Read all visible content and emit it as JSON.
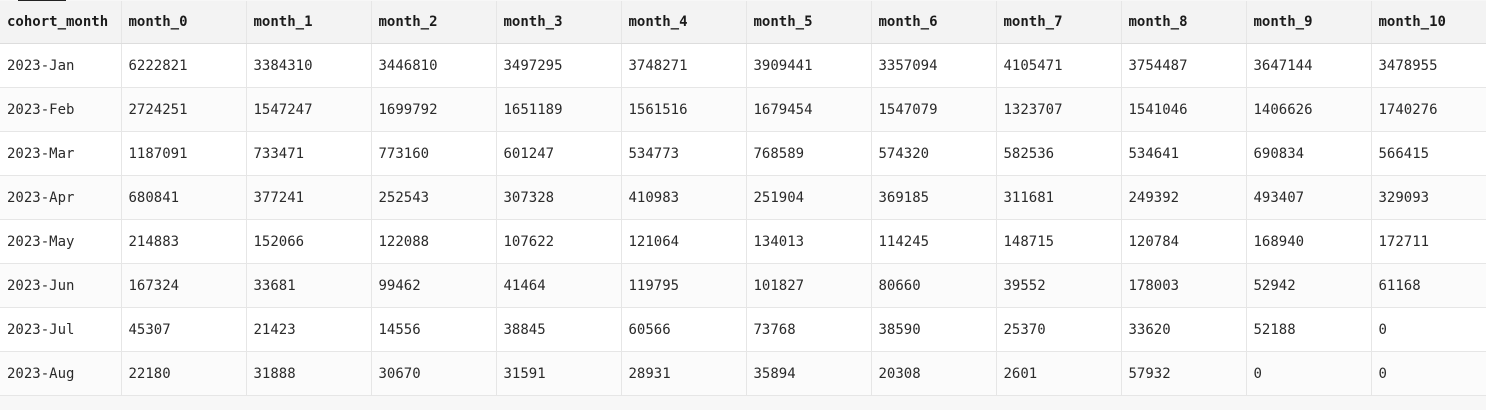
{
  "table": {
    "columns": [
      "cohort_month",
      "month_0",
      "month_1",
      "month_2",
      "month_3",
      "month_4",
      "month_5",
      "month_6",
      "month_7",
      "month_8",
      "month_9",
      "month_10"
    ],
    "rows": [
      [
        "2023-Jan",
        "6222821",
        "3384310",
        "3446810",
        "3497295",
        "3748271",
        "3909441",
        "3357094",
        "4105471",
        "3754487",
        "3647144",
        "3478955"
      ],
      [
        "2023-Feb",
        "2724251",
        "1547247",
        "1699792",
        "1651189",
        "1561516",
        "1679454",
        "1547079",
        "1323707",
        "1541046",
        "1406626",
        "1740276"
      ],
      [
        "2023-Mar",
        "1187091",
        "733471",
        "773160",
        "601247",
        "534773",
        "768589",
        "574320",
        "582536",
        "534641",
        "690834",
        "566415"
      ],
      [
        "2023-Apr",
        "680841",
        "377241",
        "252543",
        "307328",
        "410983",
        "251904",
        "369185",
        "311681",
        "249392",
        "493407",
        "329093"
      ],
      [
        "2023-May",
        "214883",
        "152066",
        "122088",
        "107622",
        "121064",
        "134013",
        "114245",
        "148715",
        "120784",
        "168940",
        "172711"
      ],
      [
        "2023-Jun",
        "167324",
        "33681",
        "99462",
        "41464",
        "119795",
        "101827",
        "80660",
        "39552",
        "178003",
        "52942",
        "61168"
      ],
      [
        "2023-Jul",
        "45307",
        "21423",
        "14556",
        "38845",
        "60566",
        "73768",
        "38590",
        "25370",
        "33620",
        "52188",
        "0"
      ],
      [
        "2023-Aug",
        "22180",
        "31888",
        "30670",
        "31591",
        "28931",
        "35894",
        "20308",
        "2601",
        "57932",
        "0",
        "0"
      ]
    ]
  }
}
